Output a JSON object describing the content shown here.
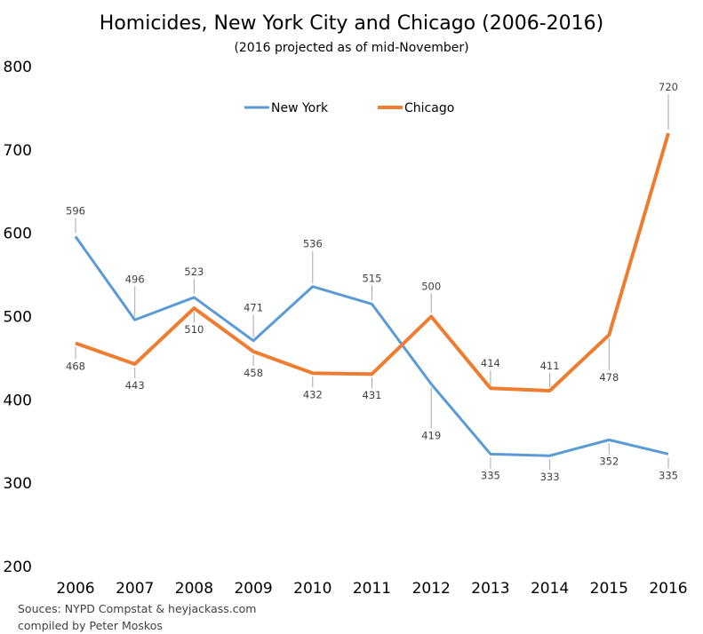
{
  "chart_data": {
    "type": "line",
    "title": "Homicides, New York City and Chicago (2006-2016)",
    "subtitle": "(2016 projected as of mid-November)",
    "categories": [
      "2006",
      "2007",
      "2008",
      "2009",
      "2010",
      "2011",
      "2012",
      "2013",
      "2014",
      "2015",
      "2016"
    ],
    "ylim": [
      200,
      800
    ],
    "yticks": [
      "200",
      "300",
      "400",
      "500",
      "600",
      "700",
      "800"
    ],
    "grid": false,
    "legend_position": "top",
    "series": [
      {
        "name": "New York",
        "color": "#5B9BD5",
        "values": [
          596,
          496,
          523,
          471,
          536,
          515,
          419,
          335,
          333,
          352,
          335
        ]
      },
      {
        "name": "Chicago",
        "color": "#ED7D31",
        "values": [
          468,
          443,
          510,
          458,
          432,
          431,
          500,
          414,
          411,
          478,
          720
        ]
      }
    ],
    "notes": [
      "Souces: NYPD Compstat & heyjackass.com",
      "compiled by Peter Moskos"
    ]
  }
}
